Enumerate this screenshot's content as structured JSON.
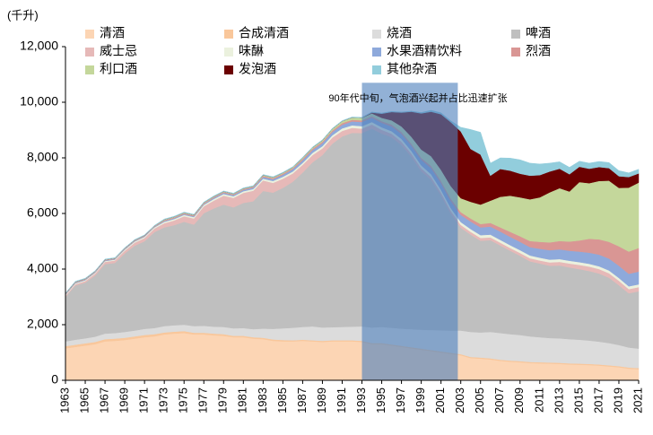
{
  "chart_data": {
    "type": "stacked-area",
    "y_unit": "(千升)",
    "annotation": "90年代中旬，气泡酒兴起并占比迅速扩张",
    "highlight": {
      "x": [
        1993,
        2002.7
      ],
      "top": 10700
    },
    "x": [
      1963,
      1964,
      1965,
      1966,
      1967,
      1968,
      1969,
      1970,
      1971,
      1972,
      1973,
      1974,
      1975,
      1976,
      1977,
      1978,
      1979,
      1980,
      1981,
      1982,
      1983,
      1984,
      1985,
      1986,
      1987,
      1988,
      1989,
      1990,
      1991,
      1992,
      1993,
      1994,
      1995,
      1996,
      1997,
      1998,
      1999,
      2000,
      2001,
      2002,
      2003,
      2004,
      2005,
      2006,
      2007,
      2008,
      2009,
      2010,
      2011,
      2012,
      2013,
      2014,
      2015,
      2016,
      2017,
      2018,
      2019,
      2020,
      2021
    ],
    "xlim": [
      1963,
      2021
    ],
    "xticks": [
      1963,
      1965,
      1967,
      1969,
      1971,
      1973,
      1975,
      1977,
      1979,
      1981,
      1983,
      1985,
      1987,
      1989,
      1991,
      1993,
      1995,
      1997,
      1999,
      2001,
      2003,
      2005,
      2007,
      2009,
      2011,
      2013,
      2015,
      2017,
      2019,
      2021
    ],
    "ylim": [
      0,
      12000
    ],
    "yticks": [
      0,
      {
        "value": 2000,
        "label": "2,000"
      },
      {
        "value": 4000,
        "label": "4,000"
      },
      {
        "value": 6000,
        "label": "6,000"
      },
      {
        "value": 8000,
        "label": "8,000"
      },
      {
        "value": 10000,
        "label": "10,000"
      },
      {
        "value": 12000,
        "label": "12,000"
      }
    ],
    "series": [
      {
        "name": "清酒",
        "color": "#fcd5b4",
        "values": [
          1150,
          1200,
          1250,
          1300,
          1400,
          1420,
          1450,
          1500,
          1550,
          1580,
          1650,
          1680,
          1700,
          1650,
          1650,
          1620,
          1600,
          1550,
          1550,
          1500,
          1480,
          1420,
          1400,
          1400,
          1420,
          1400,
          1380,
          1400,
          1400,
          1400,
          1380,
          1300,
          1300,
          1250,
          1200,
          1150,
          1100,
          1050,
          1000,
          950,
          900,
          800,
          780,
          750,
          700,
          670,
          650,
          620,
          610,
          600,
          590,
          570,
          560,
          550,
          530,
          500,
          470,
          420,
          400
        ]
      },
      {
        "name": "合成清酒",
        "color": "#f9c79b",
        "values": [
          80,
          80,
          80,
          80,
          80,
          80,
          80,
          80,
          80,
          80,
          70,
          70,
          70,
          60,
          60,
          60,
          60,
          50,
          50,
          50,
          50,
          50,
          50,
          40,
          40,
          40,
          40,
          40,
          40,
          40,
          40,
          40,
          40,
          40,
          40,
          40,
          40,
          40,
          40,
          40,
          40,
          40,
          40,
          40,
          40,
          40,
          40,
          40,
          40,
          40,
          40,
          40,
          40,
          40,
          40,
          40,
          40,
          40,
          40
        ]
      },
      {
        "name": "烧酒",
        "color": "#dcdcdc",
        "values": [
          170,
          180,
          180,
          190,
          200,
          200,
          210,
          210,
          220,
          220,
          230,
          230,
          230,
          240,
          250,
          250,
          260,
          270,
          280,
          290,
          330,
          380,
          420,
          450,
          460,
          500,
          480,
          470,
          480,
          490,
          520,
          560,
          580,
          600,
          620,
          650,
          680,
          720,
          760,
          800,
          850,
          900,
          900,
          950,
          960,
          950,
          940,
          920,
          900,
          880,
          880,
          870,
          860,
          840,
          820,
          800,
          760,
          720,
          700
        ]
      },
      {
        "name": "啤酒",
        "color": "#bfbfbf",
        "values": [
          1600,
          1950,
          2000,
          2200,
          2500,
          2520,
          2820,
          3050,
          3150,
          3450,
          3550,
          3600,
          3700,
          3650,
          4050,
          4250,
          4400,
          4350,
          4500,
          4600,
          4950,
          4900,
          5050,
          5250,
          5550,
          5900,
          6200,
          6600,
          6850,
          6970,
          6950,
          7150,
          6950,
          6850,
          6600,
          6200,
          5700,
          5400,
          4850,
          4200,
          3700,
          3500,
          3300,
          3300,
          3150,
          3000,
          2850,
          2700,
          2650,
          2600,
          2620,
          2580,
          2540,
          2500,
          2450,
          2350,
          2150,
          1950,
          2060
        ]
      },
      {
        "name": "威士忌",
        "color": "#e6b9b8",
        "values": [
          40,
          50,
          60,
          70,
          80,
          90,
          100,
          110,
          120,
          130,
          150,
          170,
          200,
          220,
          250,
          280,
          320,
          340,
          360,
          380,
          380,
          350,
          330,
          300,
          280,
          260,
          240,
          220,
          200,
          180,
          160,
          150,
          140,
          130,
          120,
          110,
          110,
          100,
          100,
          100,
          100,
          100,
          100,
          100,
          100,
          100,
          100,
          110,
          110,
          120,
          130,
          140,
          150,
          160,
          160,
          160,
          160,
          150,
          150
        ]
      },
      {
        "name": "味醂",
        "color": "#ebf1de",
        "values": [
          30,
          30,
          30,
          30,
          30,
          30,
          40,
          40,
          40,
          40,
          50,
          50,
          50,
          50,
          50,
          60,
          60,
          60,
          60,
          60,
          60,
          70,
          70,
          70,
          70,
          80,
          80,
          80,
          90,
          90,
          90,
          90,
          90,
          90,
          100,
          100,
          100,
          100,
          100,
          100,
          100,
          100,
          100,
          100,
          100,
          100,
          100,
          100,
          100,
          100,
          100,
          100,
          100,
          100,
          100,
          100,
          100,
          100,
          100
        ]
      },
      {
        "name": "水果酒精饮料",
        "color": "#8ea9db",
        "values": [
          20,
          20,
          20,
          20,
          20,
          20,
          20,
          20,
          20,
          20,
          30,
          30,
          30,
          30,
          30,
          40,
          40,
          40,
          50,
          50,
          60,
          60,
          70,
          80,
          90,
          100,
          110,
          120,
          130,
          140,
          150,
          150,
          160,
          170,
          180,
          190,
          200,
          220,
          240,
          250,
          260,
          270,
          280,
          290,
          300,
          300,
          300,
          300,
          320,
          340,
          350,
          360,
          380,
          400,
          420,
          430,
          440,
          450,
          460
        ]
      },
      {
        "name": "烈酒",
        "color": "#d99694",
        "values": [
          20,
          20,
          20,
          20,
          20,
          20,
          20,
          20,
          20,
          20,
          30,
          30,
          30,
          30,
          30,
          30,
          30,
          30,
          30,
          30,
          40,
          40,
          40,
          40,
          50,
          50,
          50,
          50,
          60,
          60,
          60,
          60,
          60,
          70,
          70,
          70,
          70,
          80,
          80,
          90,
          100,
          110,
          120,
          130,
          150,
          180,
          200,
          220,
          250,
          280,
          300,
          330,
          400,
          500,
          550,
          600,
          700,
          800,
          850
        ]
      },
      {
        "name": "利口酒",
        "color": "#c4d79b",
        "values": [
          10,
          10,
          10,
          10,
          10,
          10,
          10,
          10,
          10,
          10,
          20,
          20,
          20,
          20,
          20,
          20,
          20,
          20,
          20,
          20,
          30,
          30,
          30,
          30,
          40,
          40,
          50,
          60,
          70,
          80,
          90,
          100,
          120,
          150,
          200,
          250,
          300,
          350,
          400,
          450,
          500,
          600,
          700,
          800,
          1100,
          1300,
          1400,
          1500,
          1600,
          1800,
          1900,
          1800,
          2100,
          2000,
          2100,
          2200,
          2100,
          2300,
          2350
        ]
      },
      {
        "name": "发泡酒",
        "color": "#6b0000",
        "values": [
          0,
          0,
          0,
          0,
          0,
          0,
          0,
          0,
          0,
          0,
          0,
          0,
          0,
          0,
          0,
          0,
          0,
          0,
          0,
          0,
          0,
          0,
          0,
          0,
          0,
          0,
          0,
          0,
          0,
          0,
          0,
          30,
          150,
          300,
          500,
          900,
          1300,
          1600,
          2000,
          2300,
          2400,
          1900,
          1800,
          900,
          1000,
          900,
          850,
          850,
          800,
          750,
          700,
          620,
          550,
          520,
          500,
          450,
          420,
          380,
          330
        ]
      },
      {
        "name": "其他杂酒",
        "color": "#92cddc",
        "values": [
          20,
          20,
          20,
          20,
          20,
          20,
          20,
          20,
          20,
          20,
          20,
          20,
          20,
          20,
          20,
          20,
          20,
          20,
          20,
          20,
          20,
          20,
          20,
          20,
          20,
          20,
          20,
          20,
          20,
          20,
          20,
          20,
          20,
          20,
          20,
          20,
          30,
          50,
          50,
          50,
          150,
          700,
          800,
          450,
          400,
          450,
          500,
          450,
          400,
          300,
          250,
          250,
          200,
          200,
          200,
          200,
          200,
          150,
          150
        ]
      }
    ]
  }
}
